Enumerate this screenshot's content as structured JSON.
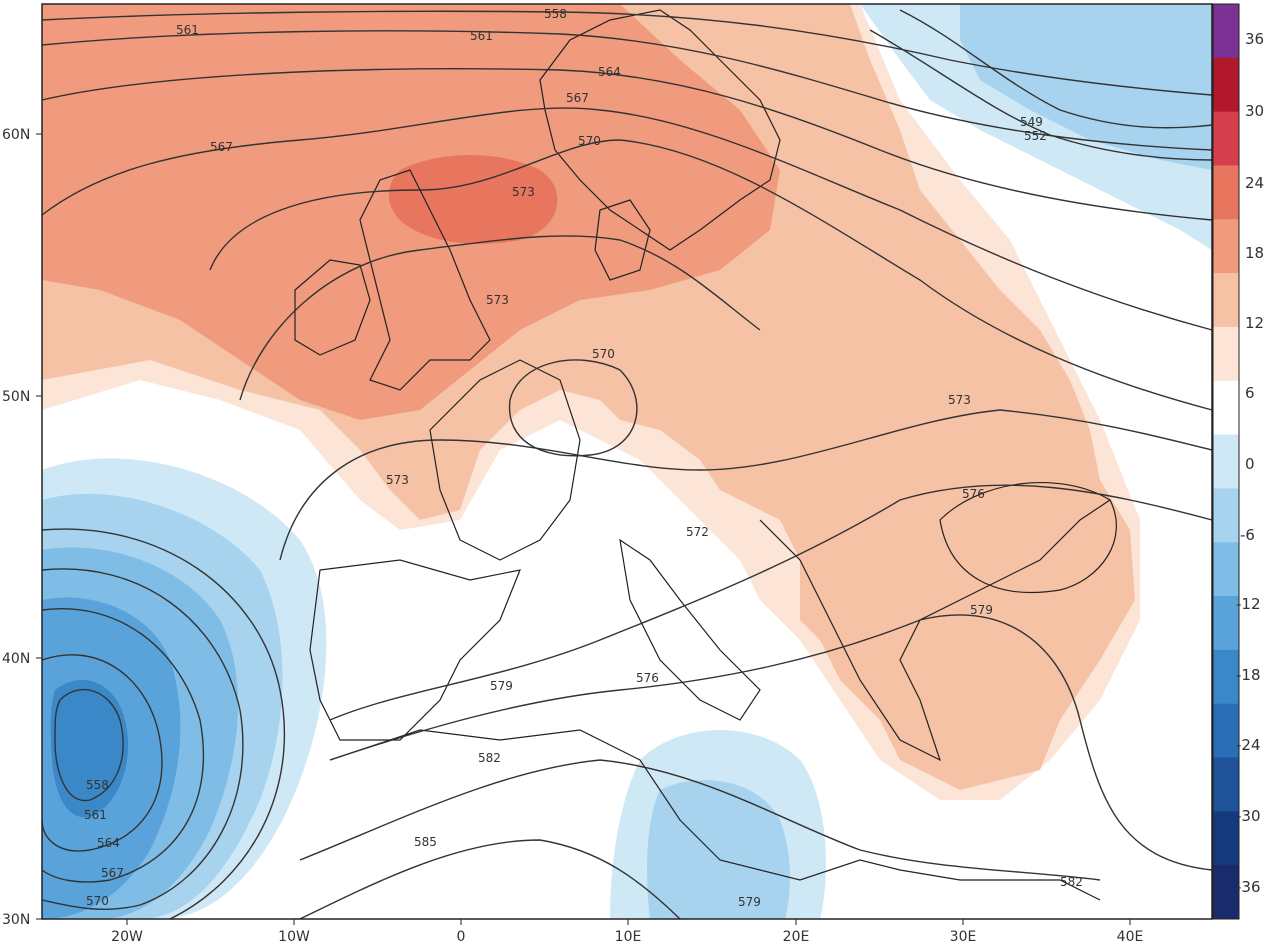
{
  "map": {
    "lat_labels": [
      "60N",
      "50N",
      "40N",
      "30N"
    ],
    "lon_labels": [
      "20W",
      "10W",
      "0",
      "10E",
      "20E",
      "30E",
      "40E"
    ],
    "contour_labels": [
      {
        "value": "558",
        "region": "north-atlantic-top"
      },
      {
        "value": "561",
        "region": "north-atlantic"
      },
      {
        "value": "561",
        "region": "north-sea-north"
      },
      {
        "value": "564",
        "region": "norway"
      },
      {
        "value": "567",
        "region": "atlantic-west"
      },
      {
        "value": "567",
        "region": "norway-south"
      },
      {
        "value": "570",
        "region": "sweden"
      },
      {
        "value": "573",
        "region": "north-sea"
      },
      {
        "value": "573",
        "region": "netherlands"
      },
      {
        "value": "570",
        "region": "belgium"
      },
      {
        "value": "573",
        "region": "biscay"
      },
      {
        "value": "573",
        "region": "ukraine"
      },
      {
        "value": "572",
        "region": "adriatic"
      },
      {
        "value": "576",
        "region": "crimea"
      },
      {
        "value": "579",
        "region": "aegean"
      },
      {
        "value": "576",
        "region": "ionian"
      },
      {
        "value": "579",
        "region": "balearic"
      },
      {
        "value": "582",
        "region": "algeria"
      },
      {
        "value": "585",
        "region": "sahara"
      },
      {
        "value": "579",
        "region": "libya"
      },
      {
        "value": "582",
        "region": "egypt-east"
      },
      {
        "value": "549",
        "region": "russia-north"
      },
      {
        "value": "552",
        "region": "russia-north"
      },
      {
        "value": "558",
        "region": "iberian-low"
      },
      {
        "value": "561",
        "region": "iberian-low"
      },
      {
        "value": "564",
        "region": "iberian-low"
      },
      {
        "value": "567",
        "region": "iberian-low"
      },
      {
        "value": "570",
        "region": "iberian-low"
      }
    ]
  },
  "colorbar": {
    "labels": [
      "36",
      "30",
      "24",
      "18",
      "12",
      "6",
      "0",
      "-6",
      "-12",
      "-18",
      "-24",
      "-30",
      "-36"
    ],
    "colors": [
      "#7b3294",
      "#b2182b",
      "#d6404e",
      "#e8765f",
      "#f09b7d",
      "#f6c2a6",
      "#fce4d6",
      "#ffffff",
      "#cfe8f6",
      "#a7d3ef",
      "#7fbde6",
      "#5aa3da",
      "#3b88c9",
      "#2a6fb5",
      "#1e539a",
      "#16397c",
      "#1b2a6b"
    ]
  },
  "colors": {
    "warm_strong": "#e8765f",
    "warm_mid": "#f09b7d",
    "warm_light": "#f6c2a6",
    "warm_pale": "#fce4d6",
    "cold_pale": "#cfe8f6",
    "cold_light": "#a7d3ef",
    "cold_mid": "#7fbde6",
    "cold_strong": "#3b88c9",
    "contour": "#333333",
    "coast": "#222222",
    "border": "#555555"
  }
}
